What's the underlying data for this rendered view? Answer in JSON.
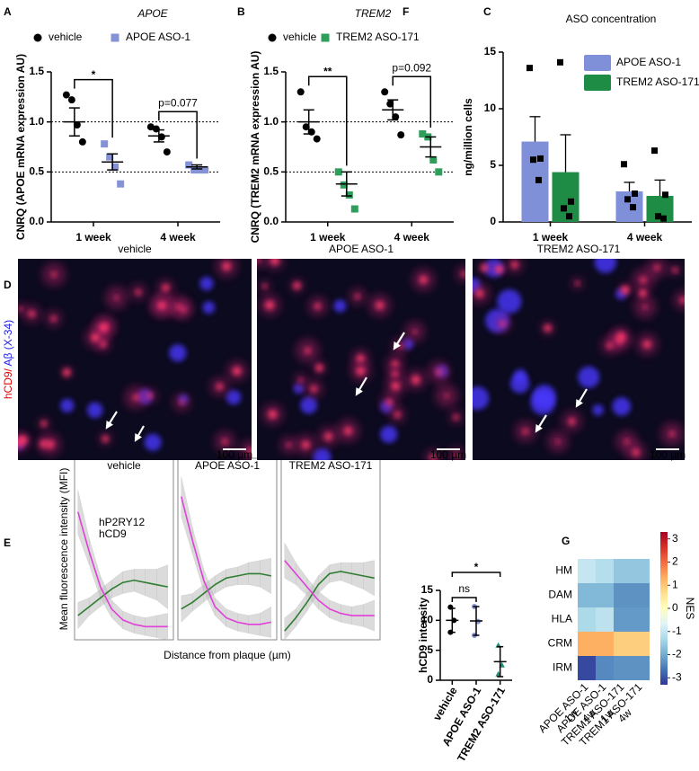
{
  "chart_data": [
    {
      "type": "dot",
      "panel": "A",
      "title": "APOE",
      "ylabel": "CNRQ (APOE mRNA expression AU)",
      "categories": [
        "1 week",
        "4 week"
      ],
      "series": [
        {
          "name": "vehicle",
          "color": "#000000",
          "marker": "circle",
          "points": [
            [
              1.27,
              1.22,
              0.97,
              0.8
            ],
            [
              0.95,
              0.93,
              0.85,
              0.7
            ]
          ],
          "mean": [
            1.0,
            0.86
          ],
          "error": [
            0.14,
            0.06
          ]
        },
        {
          "name": "APOE ASO-1",
          "color": "#8593d6",
          "marker": "square",
          "points": [
            [
              0.78,
              0.65,
              0.55,
              0.38
            ],
            [
              0.57,
              0.52,
              0.52,
              0.52
            ]
          ],
          "mean": [
            0.6,
            0.55
          ],
          "error": [
            0.08,
            0.02
          ]
        }
      ],
      "ylim": [
        0,
        1.5
      ],
      "yticks": [
        {
          "value": 0,
          "label": "0.0"
        },
        0.5,
        {
          "value": 1,
          "label": "1.0"
        },
        1.5
      ],
      "reference_lines": [
        0.5,
        1.0
      ],
      "annotations": [
        {
          "text": "*",
          "category": 0
        },
        {
          "text": "p=0.077",
          "category": 1
        }
      ]
    },
    {
      "type": "dot",
      "panel": "B",
      "title": "TREM2",
      "ylabel": "CNRQ (TREM2 mRNA expression AU)",
      "categories": [
        "1 week",
        "4 week"
      ],
      "series": [
        {
          "name": "vehicle",
          "color": "#000000",
          "marker": "circle",
          "points": [
            [
              1.3,
              0.95,
              0.9,
              0.83
            ],
            [
              1.3,
              1.18,
              1.05,
              0.87
            ]
          ],
          "mean": [
            1.0,
            1.12
          ],
          "error": [
            0.12,
            0.1
          ]
        },
        {
          "name": "TREM2 ASO-171",
          "color": "#2e9e5b",
          "marker": "square",
          "points": [
            [
              0.5,
              0.37,
              0.27,
              0.13
            ],
            [
              0.88,
              0.85,
              0.62,
              0.5
            ]
          ],
          "mean": [
            0.38,
            0.75
          ],
          "error": [
            0.12,
            0.1
          ]
        }
      ],
      "ylim": [
        0,
        1.5
      ],
      "yticks": [
        {
          "value": 0,
          "label": "0.0"
        },
        0.5,
        {
          "value": 1,
          "label": "1.0"
        },
        1.5
      ],
      "reference_lines": [
        0.5,
        1.0
      ],
      "annotations": [
        {
          "text": "**",
          "category": 0
        },
        {
          "text": "p=0.092",
          "category": 1
        }
      ]
    },
    {
      "type": "bar",
      "panel": "C",
      "title": "ASO concentration",
      "ylabel": "ng/million cells",
      "categories": [
        "1 week",
        "4 week"
      ],
      "series": [
        {
          "name": "APOE ASO-1",
          "color": "#7f8fd8",
          "values": [
            7.1,
            2.7
          ],
          "error": [
            2.2,
            0.8
          ],
          "points": [
            [
              13.6,
              5.6,
              5.5,
              3.7
            ],
            [
              5.1,
              2.5,
              2.0,
              1.3
            ]
          ]
        },
        {
          "name": "TREM2 ASO-171",
          "color": "#1e8c45",
          "values": [
            4.4,
            2.3
          ],
          "error": [
            3.3,
            1.4
          ],
          "points": [
            [
              14.1,
              1.8,
              1.2,
              0.5
            ],
            [
              6.3,
              2.4,
              0.5,
              0.3
            ]
          ]
        }
      ],
      "ylim": [
        0,
        15
      ],
      "yticks": [
        0,
        5,
        10,
        15
      ]
    },
    {
      "type": "line",
      "panel": "E",
      "ylabel": "Mean fluorescence intensity (MFI)",
      "xlabel": "Distance from plaque (µm)",
      "x": [
        3,
        13,
        23,
        33,
        43,
        53,
        63,
        73,
        83
      ],
      "xlim": [
        0,
        88
      ],
      "ylim": [
        0,
        0.75
      ],
      "legend": [
        {
          "name": "hP2RY12",
          "color": "#2e7d32"
        },
        {
          "name": "hCD9",
          "color": "#e040d8"
        }
      ],
      "band_color": "#bdbdbd",
      "facets": [
        {
          "title": "vehicle",
          "series": [
            {
              "values": [
                0.11,
                0.15,
                0.19,
                0.23,
                0.26,
                0.27,
                0.26,
                0.25,
                0.24
              ],
              "lower": [
                0.05,
                0.11,
                0.15,
                0.19,
                0.21,
                0.22,
                0.2,
                0.18,
                0.14
              ],
              "upper": [
                0.17,
                0.19,
                0.23,
                0.27,
                0.31,
                0.32,
                0.32,
                0.32,
                0.34
              ]
            },
            {
              "values": [
                0.58,
                0.4,
                0.24,
                0.14,
                0.09,
                0.07,
                0.06,
                0.06,
                0.06
              ],
              "lower": [
                0.48,
                0.34,
                0.19,
                0.1,
                0.05,
                0.03,
                0.02,
                0.01,
                0.0
              ],
              "upper": [
                0.68,
                0.46,
                0.29,
                0.18,
                0.13,
                0.11,
                0.1,
                0.11,
                0.12
              ]
            }
          ]
        },
        {
          "title": "APOE ASO-1",
          "series": [
            {
              "values": [
                0.14,
                0.17,
                0.21,
                0.25,
                0.28,
                0.29,
                0.3,
                0.3,
                0.29
              ],
              "lower": [
                0.08,
                0.13,
                0.17,
                0.21,
                0.24,
                0.25,
                0.25,
                0.24,
                0.21
              ],
              "upper": [
                0.2,
                0.21,
                0.25,
                0.29,
                0.32,
                0.33,
                0.35,
                0.36,
                0.37
              ]
            },
            {
              "values": [
                0.65,
                0.45,
                0.27,
                0.15,
                0.1,
                0.08,
                0.07,
                0.07,
                0.08
              ],
              "lower": [
                0.56,
                0.39,
                0.22,
                0.11,
                0.06,
                0.04,
                0.03,
                0.02,
                0.01
              ],
              "upper": [
                0.74,
                0.51,
                0.32,
                0.19,
                0.14,
                0.12,
                0.11,
                0.12,
                0.15
              ]
            }
          ]
        },
        {
          "title": "TREM2 ASO-171",
          "series": [
            {
              "values": [
                0.04,
                0.1,
                0.17,
                0.25,
                0.3,
                0.31,
                0.3,
                0.29,
                0.28
              ],
              "lower": [
                0.0,
                0.06,
                0.13,
                0.21,
                0.26,
                0.27,
                0.25,
                0.23,
                0.2
              ],
              "upper": [
                0.1,
                0.14,
                0.21,
                0.29,
                0.34,
                0.35,
                0.35,
                0.35,
                0.36
              ]
            },
            {
              "values": [
                0.36,
                0.3,
                0.24,
                0.18,
                0.14,
                0.12,
                0.11,
                0.11,
                0.11
              ],
              "lower": [
                0.28,
                0.25,
                0.2,
                0.14,
                0.1,
                0.08,
                0.07,
                0.06,
                0.04
              ],
              "upper": [
                0.44,
                0.35,
                0.28,
                0.22,
                0.18,
                0.16,
                0.15,
                0.16,
                0.18
              ]
            }
          ]
        }
      ]
    },
    {
      "type": "dot",
      "panel": "F",
      "ylabel": "hCD9 intensity",
      "categories": [
        "vehicle",
        "APOE ASO-1",
        "TREM2 ASO-171"
      ],
      "series": [
        {
          "colors": [
            "#000000",
            "#8593d6",
            "#1f8f7a"
          ],
          "markers": [
            "circle",
            "circle",
            "triangle"
          ],
          "points": [
            [
              12.2,
              10.0,
              8.0
            ],
            [
              12.3,
              9.8,
              7.5
            ],
            [
              5.8,
              2.5,
              1.0
            ]
          ],
          "mean": [
            10.0,
            9.9,
            3.1
          ],
          "error": [
            2.0,
            2.4,
            2.5
          ]
        }
      ],
      "ylim": [
        0,
        15
      ],
      "yticks": [
        0,
        5,
        10,
        15
      ],
      "annotations": [
        {
          "text": "ns",
          "categories": [
            0,
            1
          ]
        },
        {
          "text": "*",
          "categories": [
            0,
            2
          ]
        }
      ]
    },
    {
      "type": "heatmap",
      "panel": "G",
      "rows": [
        "HM",
        "DAM",
        "HLA",
        "CRM",
        "IRM"
      ],
      "columns": [
        {
          "label": "APOE ASO-1",
          "time": "1w"
        },
        {
          "label": "APOE ASO-1",
          "time": "4w"
        },
        {
          "label": "TREM1 ASO-171",
          "time": "1w"
        },
        {
          "label": "TREM1 ASO-171",
          "time": "4w"
        }
      ],
      "values": [
        [
          -1.0,
          -1.2,
          -1.6,
          -1.6
        ],
        [
          -1.8,
          -1.8,
          -2.3,
          -2.3
        ],
        [
          -1.3,
          -1.1,
          -2.2,
          -2.2
        ],
        [
          1.3,
          1.3,
          0.9,
          0.9
        ],
        [
          -3.1,
          -2.4,
          -2.3,
          -2.3
        ]
      ],
      "clim": [
        -3.3,
        3.3
      ],
      "colorbar_ticks": [
        3,
        2,
        1,
        0,
        -1,
        -2,
        -3
      ],
      "colorbar_label": "NES",
      "colormap": [
        "#313695",
        "#4575b4",
        "#74add1",
        "#abd9e9",
        "#e0f3f8",
        "#ffffbf",
        "#fee090",
        "#fdae61",
        "#f46d43",
        "#d73027",
        "#a50026"
      ]
    }
  ],
  "micrographs": {
    "panel": "D",
    "titles": [
      "vehicle",
      "APOE ASO-1",
      "TREM2 ASO-171"
    ],
    "stain_red": "hCD9/",
    "stain_blue": "Aβ (X-34)",
    "scale_bar": "100 µm"
  }
}
